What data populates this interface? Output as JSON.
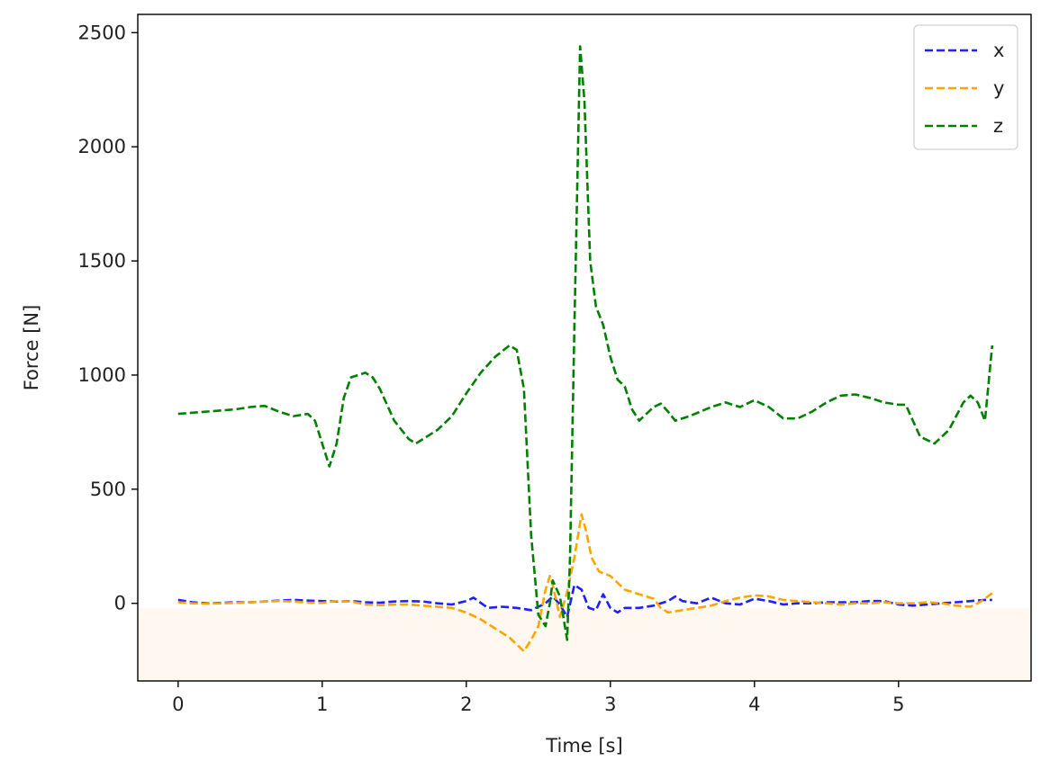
{
  "chart_data": {
    "type": "line",
    "title": "",
    "xlabel": "Time [s]",
    "ylabel": "Force [N]",
    "xlim": [
      -0.28,
      5.92
    ],
    "ylim": [
      -340,
      2580
    ],
    "xticks": [
      0,
      1,
      2,
      3,
      4,
      5
    ],
    "yticks": [
      0,
      500,
      1000,
      1500,
      2000,
      2500
    ],
    "grid": false,
    "legend_position": "top-right",
    "line_style": "dashed",
    "background_band": {
      "from": -340,
      "to": -20,
      "color": "#fff8f0"
    },
    "series": [
      {
        "name": "x",
        "color": "#1f1fff",
        "points": [
          [
            0.0,
            15
          ],
          [
            0.1,
            5
          ],
          [
            0.2,
            0
          ],
          [
            0.3,
            2
          ],
          [
            0.4,
            5
          ],
          [
            0.5,
            5
          ],
          [
            0.6,
            8
          ],
          [
            0.7,
            12
          ],
          [
            0.8,
            15
          ],
          [
            0.9,
            12
          ],
          [
            1.0,
            10
          ],
          [
            1.1,
            8
          ],
          [
            1.2,
            10
          ],
          [
            1.3,
            5
          ],
          [
            1.4,
            3
          ],
          [
            1.5,
            8
          ],
          [
            1.6,
            10
          ],
          [
            1.7,
            8
          ],
          [
            1.8,
            0
          ],
          [
            1.9,
            -5
          ],
          [
            2.0,
            10
          ],
          [
            2.05,
            25
          ],
          [
            2.15,
            -20
          ],
          [
            2.25,
            -15
          ],
          [
            2.35,
            -20
          ],
          [
            2.45,
            -30
          ],
          [
            2.55,
            0
          ],
          [
            2.6,
            30
          ],
          [
            2.65,
            -5
          ],
          [
            2.7,
            -60
          ],
          [
            2.75,
            80
          ],
          [
            2.8,
            60
          ],
          [
            2.85,
            -20
          ],
          [
            2.9,
            -30
          ],
          [
            2.95,
            40
          ],
          [
            3.0,
            -20
          ],
          [
            3.05,
            -40
          ],
          [
            3.1,
            -20
          ],
          [
            3.2,
            -20
          ],
          [
            3.3,
            -10
          ],
          [
            3.4,
            10
          ],
          [
            3.45,
            30
          ],
          [
            3.5,
            10
          ],
          [
            3.6,
            0
          ],
          [
            3.7,
            25
          ],
          [
            3.8,
            0
          ],
          [
            3.9,
            -5
          ],
          [
            4.0,
            20
          ],
          [
            4.1,
            10
          ],
          [
            4.2,
            -5
          ],
          [
            4.3,
            0
          ],
          [
            4.4,
            0
          ],
          [
            4.5,
            5
          ],
          [
            4.6,
            5
          ],
          [
            4.7,
            5
          ],
          [
            4.8,
            10
          ],
          [
            4.9,
            10
          ],
          [
            5.0,
            -5
          ],
          [
            5.1,
            -10
          ],
          [
            5.2,
            -5
          ],
          [
            5.3,
            0
          ],
          [
            5.4,
            5
          ],
          [
            5.5,
            10
          ],
          [
            5.6,
            15
          ],
          [
            5.65,
            15
          ]
        ]
      },
      {
        "name": "y",
        "color": "#ffa500",
        "points": [
          [
            0.0,
            5
          ],
          [
            0.1,
            0
          ],
          [
            0.2,
            -2
          ],
          [
            0.3,
            0
          ],
          [
            0.4,
            2
          ],
          [
            0.5,
            5
          ],
          [
            0.6,
            8
          ],
          [
            0.7,
            10
          ],
          [
            0.8,
            8
          ],
          [
            0.9,
            3
          ],
          [
            1.0,
            2
          ],
          [
            1.1,
            10
          ],
          [
            1.2,
            8
          ],
          [
            1.3,
            -5
          ],
          [
            1.4,
            -8
          ],
          [
            1.5,
            -5
          ],
          [
            1.6,
            -5
          ],
          [
            1.7,
            -10
          ],
          [
            1.8,
            -15
          ],
          [
            1.9,
            -20
          ],
          [
            2.0,
            -40
          ],
          [
            2.1,
            -70
          ],
          [
            2.2,
            -110
          ],
          [
            2.3,
            -150
          ],
          [
            2.4,
            -210
          ],
          [
            2.45,
            -160
          ],
          [
            2.5,
            -100
          ],
          [
            2.55,
            60
          ],
          [
            2.58,
            120
          ],
          [
            2.6,
            80
          ],
          [
            2.65,
            -60
          ],
          [
            2.7,
            50
          ],
          [
            2.75,
            200
          ],
          [
            2.8,
            390
          ],
          [
            2.83,
            320
          ],
          [
            2.87,
            200
          ],
          [
            2.92,
            140
          ],
          [
            3.0,
            120
          ],
          [
            3.05,
            90
          ],
          [
            3.1,
            60
          ],
          [
            3.2,
            40
          ],
          [
            3.3,
            20
          ],
          [
            3.35,
            -20
          ],
          [
            3.4,
            -40
          ],
          [
            3.5,
            -30
          ],
          [
            3.6,
            -20
          ],
          [
            3.7,
            -10
          ],
          [
            3.8,
            10
          ],
          [
            3.9,
            25
          ],
          [
            4.0,
            35
          ],
          [
            4.1,
            30
          ],
          [
            4.2,
            15
          ],
          [
            4.3,
            10
          ],
          [
            4.4,
            5
          ],
          [
            4.5,
            0
          ],
          [
            4.6,
            -5
          ],
          [
            4.7,
            0
          ],
          [
            4.8,
            0
          ],
          [
            4.9,
            5
          ],
          [
            5.0,
            0
          ],
          [
            5.1,
            0
          ],
          [
            5.2,
            5
          ],
          [
            5.3,
            0
          ],
          [
            5.4,
            -10
          ],
          [
            5.5,
            -15
          ],
          [
            5.55,
            0
          ],
          [
            5.6,
            20
          ],
          [
            5.65,
            45
          ]
        ]
      },
      {
        "name": "z",
        "color": "#008000",
        "points": [
          [
            0.0,
            830
          ],
          [
            0.1,
            835
          ],
          [
            0.2,
            840
          ],
          [
            0.3,
            845
          ],
          [
            0.4,
            850
          ],
          [
            0.5,
            860
          ],
          [
            0.6,
            865
          ],
          [
            0.7,
            840
          ],
          [
            0.8,
            820
          ],
          [
            0.9,
            830
          ],
          [
            0.95,
            800
          ],
          [
            1.0,
            700
          ],
          [
            1.05,
            600
          ],
          [
            1.1,
            700
          ],
          [
            1.15,
            900
          ],
          [
            1.2,
            990
          ],
          [
            1.3,
            1010
          ],
          [
            1.35,
            990
          ],
          [
            1.4,
            940
          ],
          [
            1.5,
            800
          ],
          [
            1.6,
            720
          ],
          [
            1.65,
            700
          ],
          [
            1.7,
            720
          ],
          [
            1.8,
            760
          ],
          [
            1.9,
            820
          ],
          [
            2.0,
            920
          ],
          [
            2.1,
            1010
          ],
          [
            2.2,
            1080
          ],
          [
            2.3,
            1130
          ],
          [
            2.35,
            1110
          ],
          [
            2.4,
            940
          ],
          [
            2.45,
            300
          ],
          [
            2.5,
            -50
          ],
          [
            2.55,
            -100
          ],
          [
            2.58,
            0
          ],
          [
            2.6,
            100
          ],
          [
            2.65,
            30
          ],
          [
            2.7,
            -160
          ],
          [
            2.72,
            200
          ],
          [
            2.75,
            1200
          ],
          [
            2.79,
            2440
          ],
          [
            2.82,
            2200
          ],
          [
            2.86,
            1500
          ],
          [
            2.9,
            1300
          ],
          [
            2.95,
            1220
          ],
          [
            3.0,
            1080
          ],
          [
            3.05,
            980
          ],
          [
            3.1,
            950
          ],
          [
            3.15,
            850
          ],
          [
            3.2,
            800
          ],
          [
            3.3,
            860
          ],
          [
            3.35,
            875
          ],
          [
            3.4,
            840
          ],
          [
            3.45,
            800
          ],
          [
            3.55,
            820
          ],
          [
            3.7,
            860
          ],
          [
            3.8,
            880
          ],
          [
            3.9,
            860
          ],
          [
            4.0,
            890
          ],
          [
            4.1,
            860
          ],
          [
            4.2,
            810
          ],
          [
            4.3,
            810
          ],
          [
            4.4,
            840
          ],
          [
            4.5,
            880
          ],
          [
            4.6,
            910
          ],
          [
            4.7,
            915
          ],
          [
            4.8,
            900
          ],
          [
            4.9,
            880
          ],
          [
            5.0,
            870
          ],
          [
            5.05,
            870
          ],
          [
            5.15,
            730
          ],
          [
            5.25,
            700
          ],
          [
            5.35,
            760
          ],
          [
            5.45,
            880
          ],
          [
            5.5,
            910
          ],
          [
            5.55,
            880
          ],
          [
            5.6,
            800
          ],
          [
            5.65,
            1130
          ]
        ]
      }
    ]
  }
}
